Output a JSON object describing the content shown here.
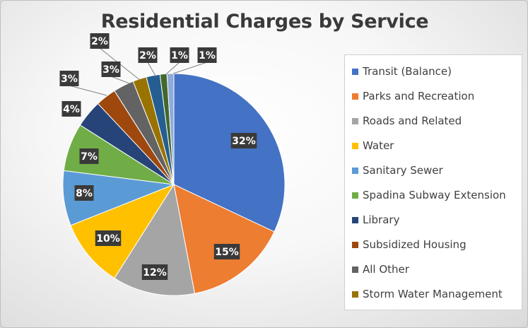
{
  "chart_data": {
    "type": "pie",
    "title": "Residential Charges by Service",
    "data_label_format": "percent",
    "legend_position": "right",
    "slices": [
      {
        "name": "Transit (Balance)",
        "value": 32,
        "color": "#4472c4",
        "label": "32%"
      },
      {
        "name": "Parks and Recreation",
        "value": 15,
        "color": "#ed7d31",
        "label": "15%"
      },
      {
        "name": "Roads and Related",
        "value": 12,
        "color": "#a5a5a5",
        "label": "12%"
      },
      {
        "name": "Water",
        "value": 10,
        "color": "#ffc000",
        "label": "10%"
      },
      {
        "name": "Sanitary Sewer",
        "value": 8,
        "color": "#5b9bd5",
        "label": "8%"
      },
      {
        "name": "Spadina Subway Extension",
        "value": 7,
        "color": "#70ad47",
        "label": "7%"
      },
      {
        "name": "Library",
        "value": 4,
        "color": "#264478",
        "label": "4%"
      },
      {
        "name": "Subsidized Housing",
        "value": 3,
        "color": "#9e480e",
        "label": "3%"
      },
      {
        "name": "All Other",
        "value": 3,
        "color": "#636363",
        "label": "3%"
      },
      {
        "name": "Storm Water Management",
        "value": 2,
        "color": "#997300",
        "label": "2%"
      },
      {
        "name": "",
        "value": 2,
        "color": "#255e91",
        "label": "2%"
      },
      {
        "name": "",
        "value": 1,
        "color": "#43682b",
        "label": "1%"
      },
      {
        "name": "",
        "value": 1,
        "color": "#8faadc",
        "label": "1%"
      }
    ]
  }
}
